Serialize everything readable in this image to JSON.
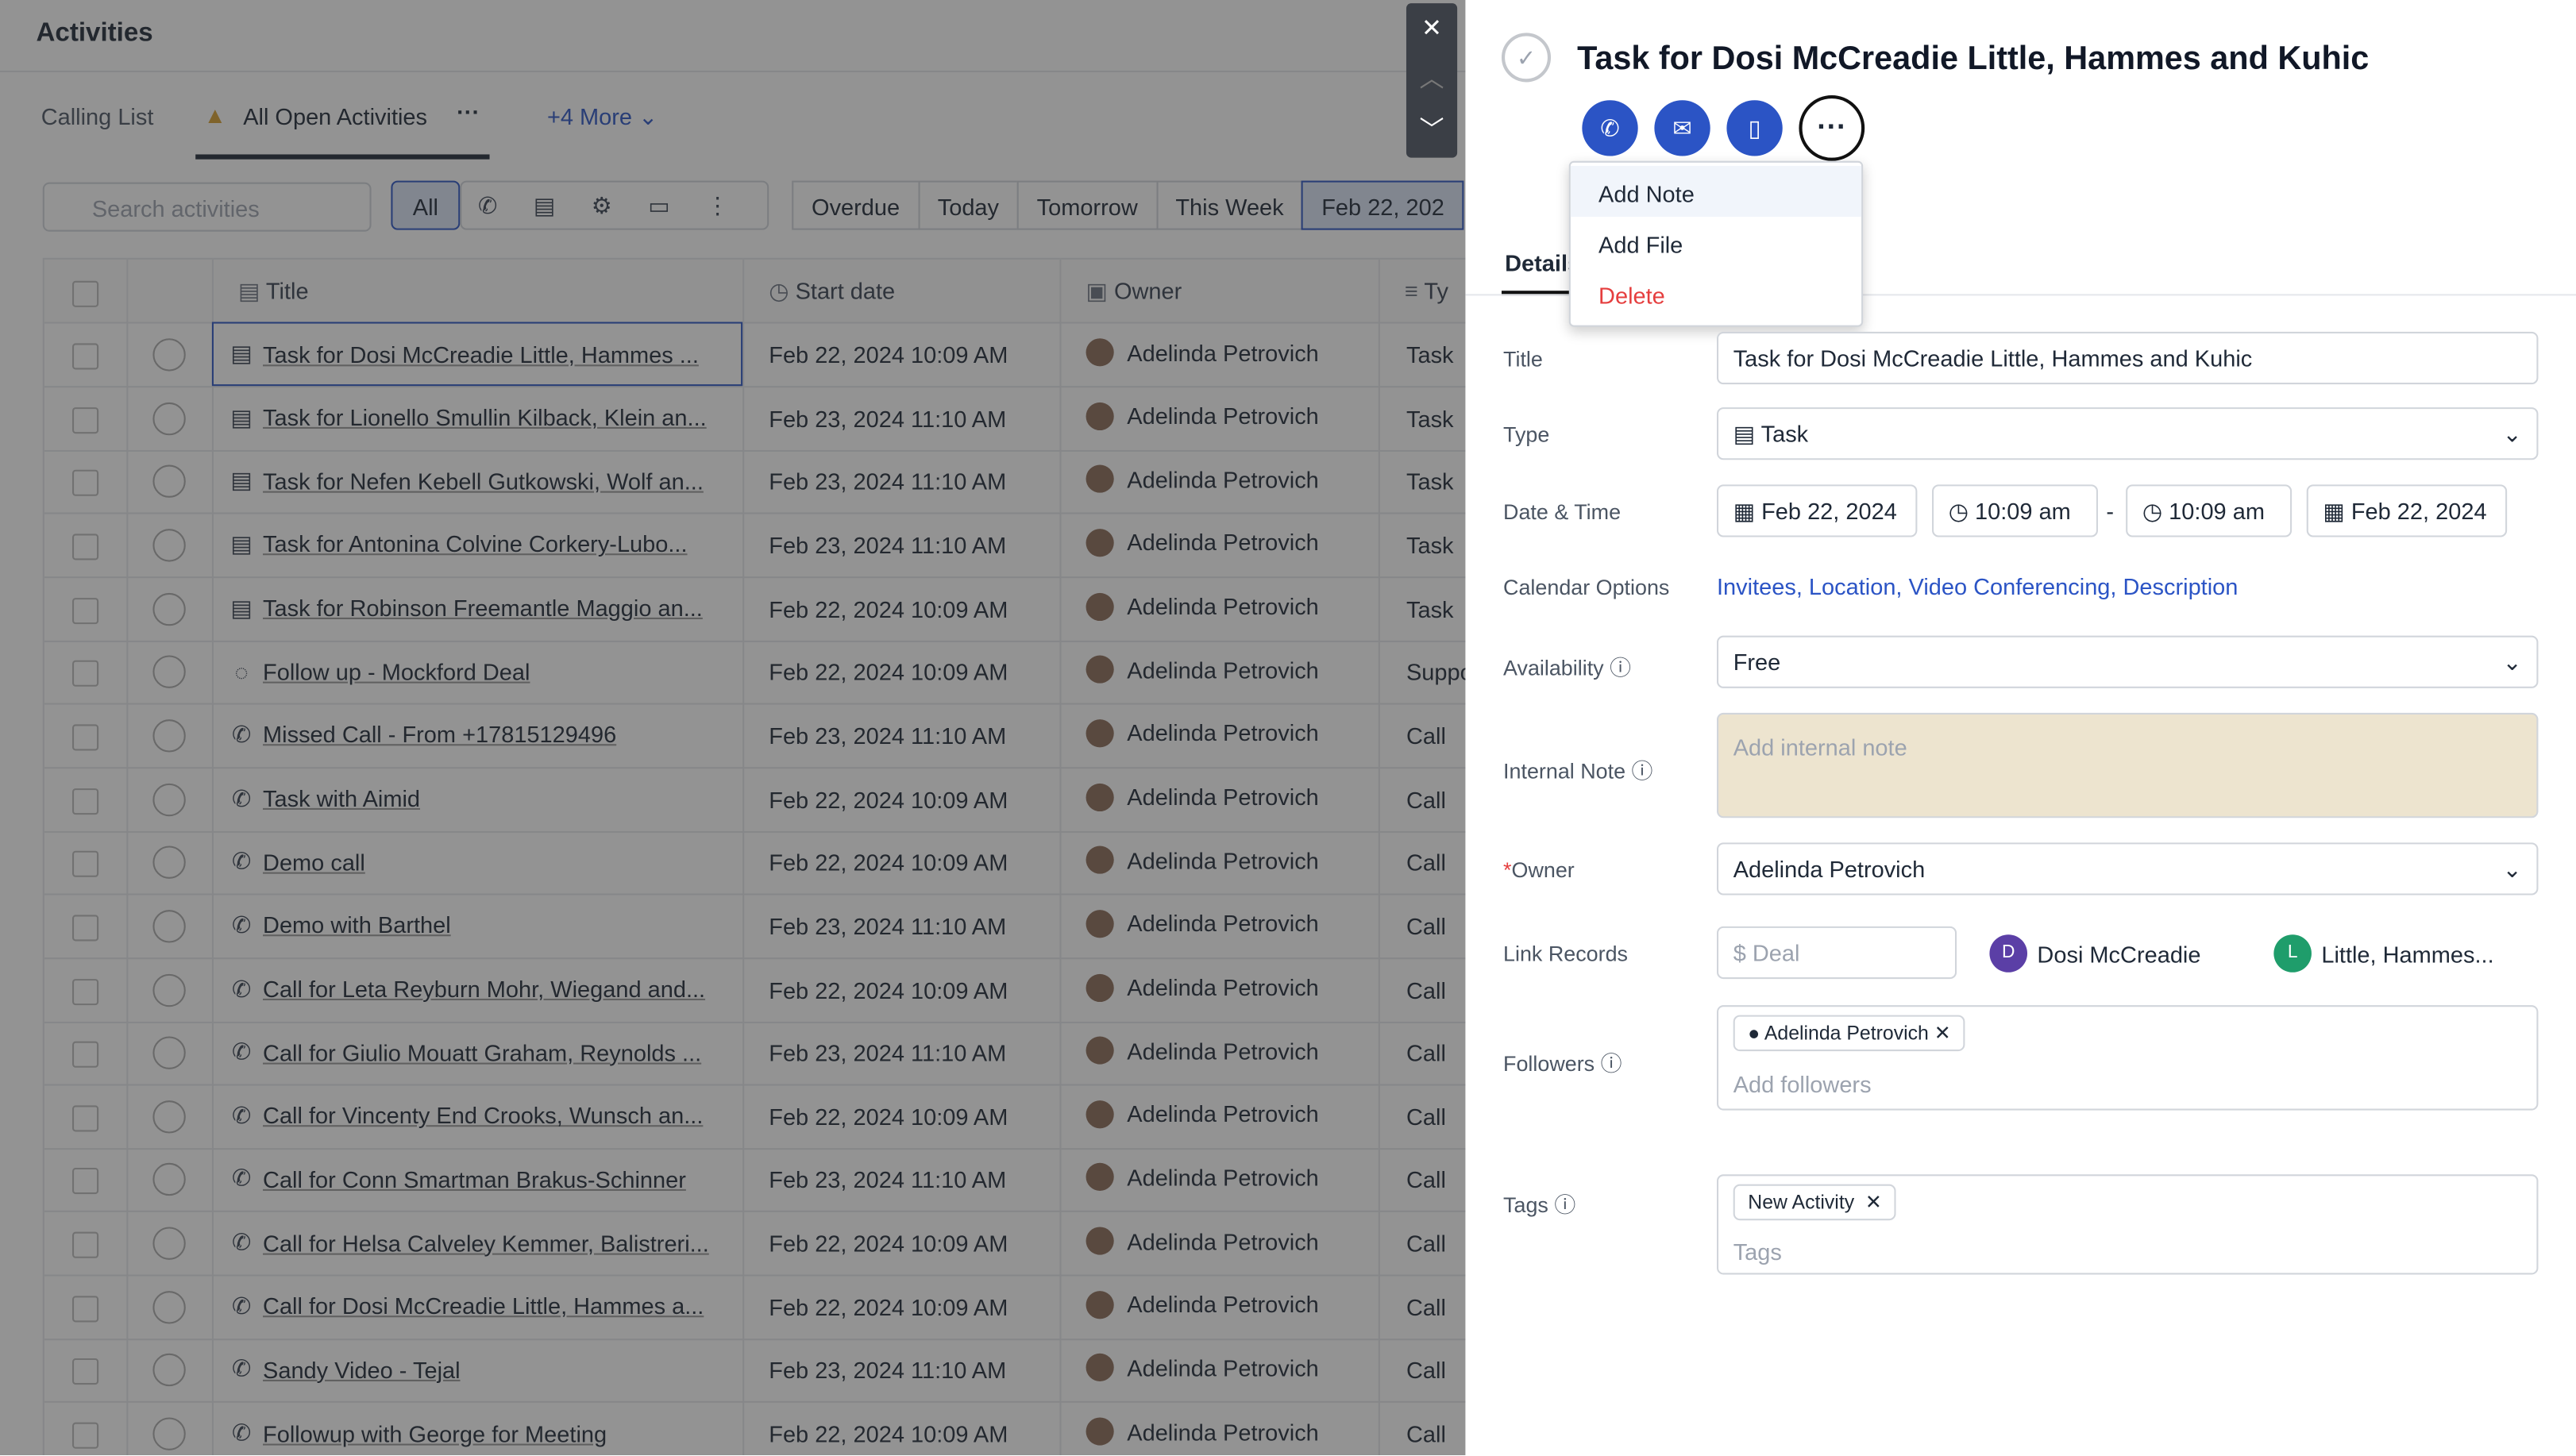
{
  "header": {
    "title": "Activities"
  },
  "tabs": [
    "Calling List",
    "All Open Activities",
    "+4 More"
  ],
  "search_placeholder": "Search activities",
  "type_filter": "All",
  "date_filters": [
    "Overdue",
    "Today",
    "Tomorrow",
    "This Week",
    "Feb 22, 202"
  ],
  "table": {
    "columns": [
      "Title",
      "Start date",
      "Owner",
      "Ty"
    ],
    "rows": [
      [
        "Task for Dosi McCreadie Little, Hammes ...",
        "Feb 22, 2024 10:09 AM",
        "Adelinda Petrovich",
        "Task"
      ],
      [
        "Task for Lionello Smullin Kilback, Klein an...",
        "Feb 23, 2024 11:10 AM",
        "Adelinda Petrovich",
        "Task"
      ],
      [
        "Task for Nefen Kebell Gutkowski, Wolf an...",
        "Feb 23, 2024 11:10 AM",
        "Adelinda Petrovich",
        "Task"
      ],
      [
        "Task for Antonina Colvine Corkery-Lubo...",
        "Feb 23, 2024 11:10 AM",
        "Adelinda Petrovich",
        "Task"
      ],
      [
        "Task for Robinson Freemantle Maggio an...",
        "Feb 22, 2024 10:09 AM",
        "Adelinda Petrovich",
        "Task"
      ],
      [
        "Follow up - Mockford Deal",
        "Feb 22, 2024 10:09 AM",
        "Adelinda Petrovich",
        "Suppo"
      ],
      [
        "Missed Call - From +17815129496",
        "Feb 23, 2024 11:10 AM",
        "Adelinda Petrovich",
        "Call"
      ],
      [
        "Task with Aimid",
        "Feb 22, 2024 10:09 AM",
        "Adelinda Petrovich",
        "Call"
      ],
      [
        "Demo call",
        "Feb 22, 2024 10:09 AM",
        "Adelinda Petrovich",
        "Call"
      ],
      [
        "Demo with Barthel",
        "Feb 23, 2024 11:10 AM",
        "Adelinda Petrovich",
        "Call"
      ],
      [
        "Call for Leta Reyburn Mohr, Wiegand and...",
        "Feb 22, 2024 10:09 AM",
        "Adelinda Petrovich",
        "Call"
      ],
      [
        "Call for Giulio Mouatt Graham, Reynolds ...",
        "Feb 23, 2024 11:10 AM",
        "Adelinda Petrovich",
        "Call"
      ],
      [
        "Call for Vincenty End Crooks, Wunsch an...",
        "Feb 22, 2024 10:09 AM",
        "Adelinda Petrovich",
        "Call"
      ],
      [
        "Call for Conn Smartman Brakus-Schinner",
        "Feb 23, 2024 11:10 AM",
        "Adelinda Petrovich",
        "Call"
      ],
      [
        "Call for Helsa Calveley Kemmer, Balistreri...",
        "Feb 22, 2024 10:09 AM",
        "Adelinda Petrovich",
        "Call"
      ],
      [
        "Call for Dosi McCreadie Little, Hammes a...",
        "Feb 22, 2024 10:09 AM",
        "Adelinda Petrovich",
        "Call"
      ],
      [
        "Sandy Video - Tejal",
        "Feb 23, 2024 11:10 AM",
        "Adelinda Petrovich",
        "Call"
      ],
      [
        "Followup with George for Meeting",
        "Feb 22, 2024 10:09 AM",
        "Adelinda Petrovich",
        "Call"
      ]
    ]
  },
  "detail": {
    "title": "Task for Dosi McCreadie Little, Hammes and Kuhic",
    "tab": "Details",
    "menu": [
      "Add Note",
      "Add File",
      "Delete"
    ],
    "fields": {
      "title": {
        "label": "Title",
        "value": "Task for Dosi McCreadie Little, Hammes and Kuhic"
      },
      "type": {
        "label": "Type",
        "value": "Task"
      },
      "datetime": {
        "label": "Date & Time",
        "start_date": "Feb 22, 2024",
        "start_time": "10:09 am",
        "separator": "-",
        "end_time": "10:09 am",
        "end_date": "Feb 22, 2024"
      },
      "calendar": {
        "label": "Calendar Options",
        "value": "Invitees, Location, Video Conferencing, Description"
      },
      "availability": {
        "label": "Availability",
        "value": "Free"
      },
      "note": {
        "label": "Internal Note",
        "placeholder": "Add internal note"
      },
      "owner": {
        "required": "*",
        "label": "Owner",
        "value": "Adelinda Petrovich"
      },
      "link": {
        "label": "Link Records",
        "placeholder": "Deal",
        "records": [
          {
            "initial": "D",
            "name": "Dosi McCreadie"
          },
          {
            "initial": "L",
            "name": "Little, Hammes..."
          }
        ]
      },
      "followers": {
        "label": "Followers",
        "chip": "Adelinda Petrovich",
        "placeholder": "Add followers"
      },
      "tags": {
        "label": "Tags",
        "chip": "New Activity",
        "placeholder": "Tags"
      }
    }
  }
}
